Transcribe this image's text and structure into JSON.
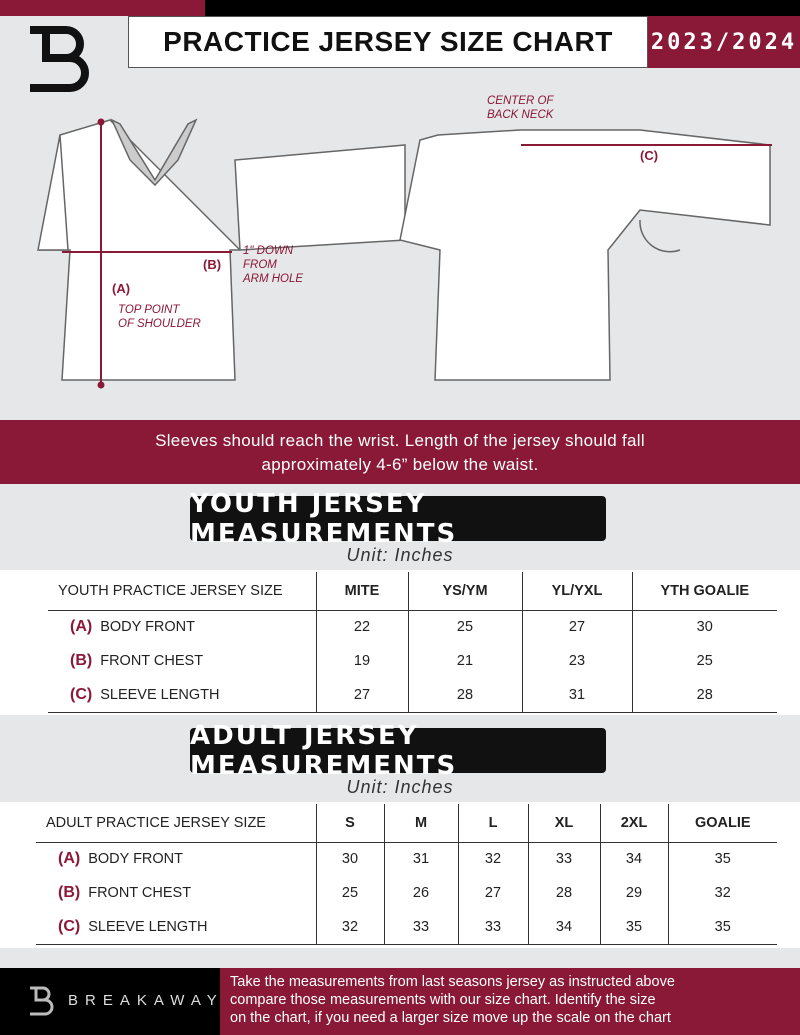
{
  "header": {
    "title": "PRACTICE JERSEY SIZE CHART",
    "season": "2023/2024",
    "logo_letter": "B"
  },
  "diagram": {
    "notes": {
      "center_back_neck": [
        "CENTER OF",
        "BACK NECK"
      ],
      "down_from_armhole": [
        "1\" DOWN",
        "FROM",
        "ARM HOLE"
      ],
      "top_point": [
        "TOP POINT",
        "OF SHOULDER"
      ]
    },
    "labels": {
      "a": "(A)",
      "b": "(B)",
      "c": "(C)"
    }
  },
  "instruction": [
    "Sleeves should reach the wrist. Length of the jersey should fall",
    "approximately 4-6” below the waist."
  ],
  "youth": {
    "title": "YOUTH JERSEY MEASUREMENTS",
    "unit": "Unit: Inches",
    "header": "YOUTH PRACTICE JERSEY SIZE",
    "sizes": [
      "MITE",
      "YS/YM",
      "YL/YXL",
      "YTH GOALIE"
    ],
    "rows": [
      {
        "letter": "(A)",
        "label": "BODY FRONT",
        "values": [
          "22",
          "25",
          "27",
          "30"
        ]
      },
      {
        "letter": "(B)",
        "label": "FRONT CHEST",
        "values": [
          "19",
          "21",
          "23",
          "25"
        ]
      },
      {
        "letter": "(C)",
        "label": "SLEEVE LENGTH",
        "values": [
          "27",
          "28",
          "31",
          "28"
        ]
      }
    ]
  },
  "adult": {
    "title": "ADULT JERSEY MEASUREMENTS",
    "unit": "Unit: Inches",
    "header": "ADULT PRACTICE JERSEY SIZE",
    "sizes": [
      "S",
      "M",
      "L",
      "XL",
      "2XL",
      "GOALIE"
    ],
    "rows": [
      {
        "letter": "(A)",
        "label": "BODY FRONT",
        "values": [
          "30",
          "31",
          "32",
          "33",
          "34",
          "35"
        ]
      },
      {
        "letter": "(B)",
        "label": "FRONT CHEST",
        "values": [
          "25",
          "26",
          "27",
          "28",
          "29",
          "32"
        ]
      },
      {
        "letter": "(C)",
        "label": "SLEEVE LENGTH",
        "values": [
          "32",
          "33",
          "33",
          "34",
          "35",
          "35"
        ]
      }
    ]
  },
  "footer": {
    "brand": "BREAKAWAY",
    "text": [
      "Take the measurements from last seasons jersey as instructed above",
      "compare those measurements  with our size chart. Identify the size",
      "on the chart, if you need a larger size move up the scale on the chart"
    ]
  },
  "colors": {
    "maroon": "#8a1837",
    "black": "#000000",
    "background": "#e6e7e8"
  }
}
